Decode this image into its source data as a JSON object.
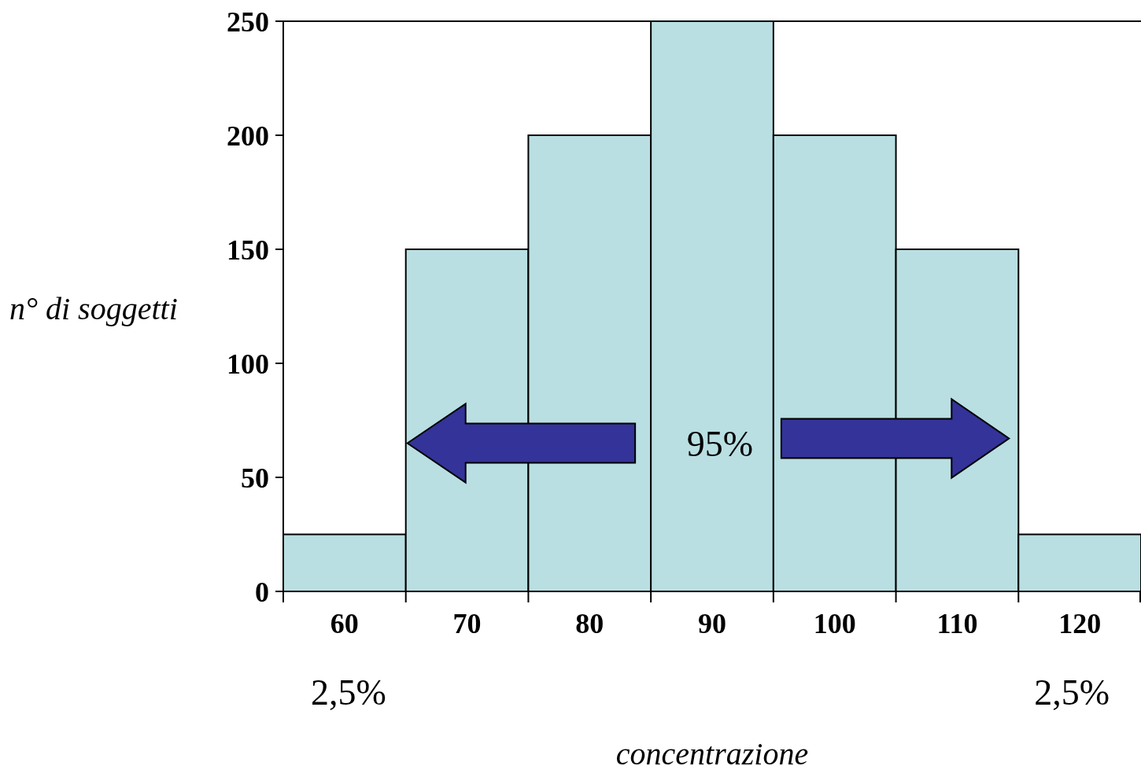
{
  "chart_data": {
    "type": "bar",
    "categories": [
      "60",
      "70",
      "80",
      "90",
      "100",
      "110",
      "120"
    ],
    "values": [
      25,
      150,
      200,
      250,
      200,
      150,
      25
    ],
    "color": "#b9dfe2",
    "ylim": [
      0,
      250
    ],
    "yticks": [
      0,
      50,
      100,
      150,
      200,
      250
    ],
    "ylabel": "n° di soggetti",
    "xlabel": "concentrazione",
    "annotations": [
      "95%",
      "2,5%",
      "2,5%"
    ]
  }
}
